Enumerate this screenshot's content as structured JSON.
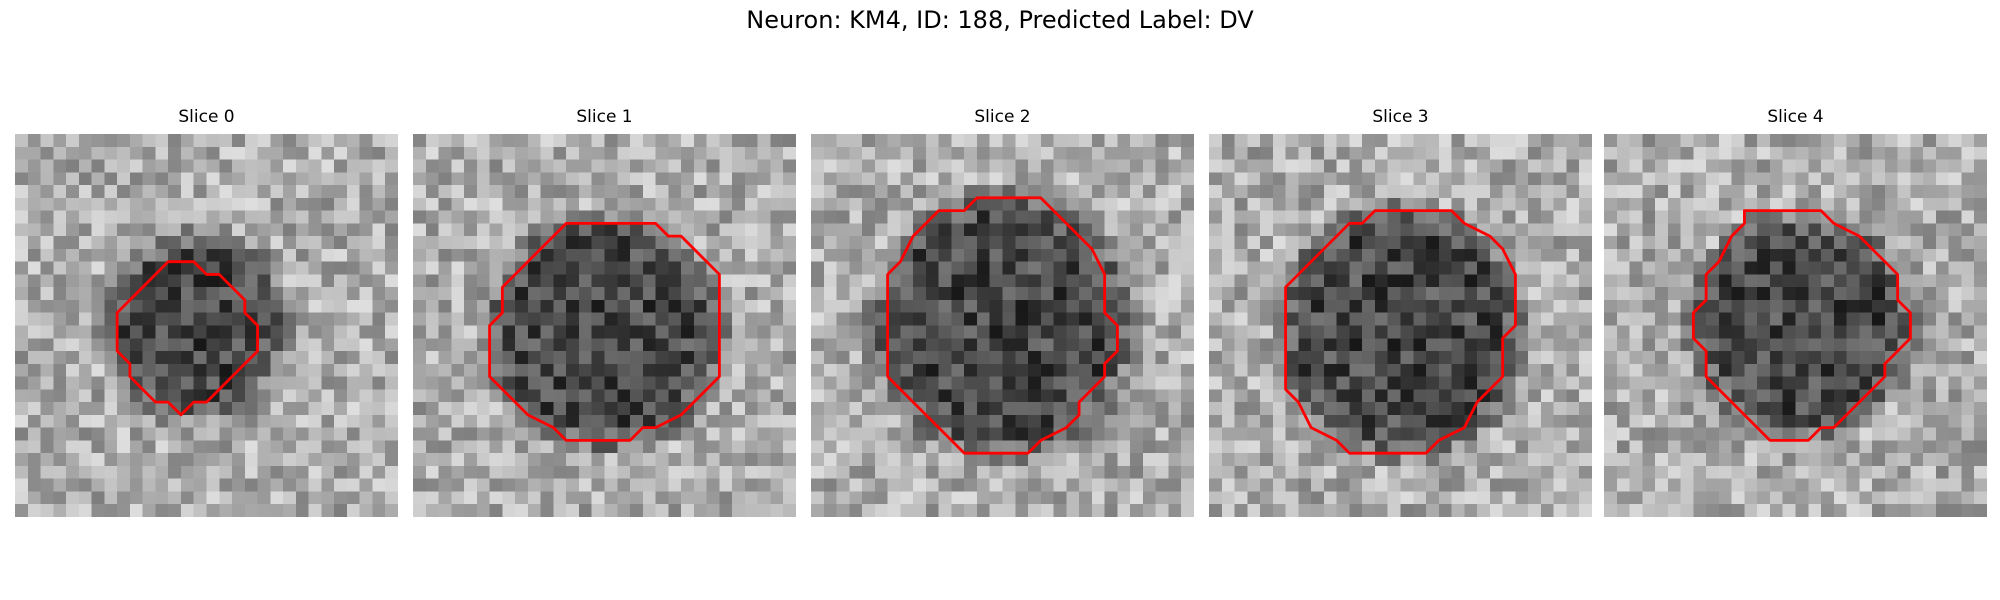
{
  "figure": {
    "title": "Neuron: KM4, ID: 188, Predicted Label: DV"
  },
  "slices": [
    {
      "title": "Slice 0",
      "contour": [
        [
          12,
          10
        ],
        [
          14,
          10
        ],
        [
          15,
          11
        ],
        [
          16,
          11
        ],
        [
          17,
          12
        ],
        [
          18,
          13
        ],
        [
          18,
          14
        ],
        [
          19,
          15
        ],
        [
          19,
          17
        ],
        [
          18,
          18
        ],
        [
          17,
          19
        ],
        [
          16,
          20
        ],
        [
          15,
          21
        ],
        [
          14,
          21
        ],
        [
          13,
          22
        ],
        [
          12,
          21
        ],
        [
          11,
          21
        ],
        [
          10,
          20
        ],
        [
          9,
          19
        ],
        [
          9,
          18
        ],
        [
          8,
          17
        ],
        [
          8,
          14
        ],
        [
          9,
          13
        ],
        [
          10,
          12
        ],
        [
          11,
          11
        ]
      ],
      "dark_center": [
        14,
        15
      ],
      "dark_radius": 6.5,
      "fill_fraction": 0.35
    },
    {
      "title": "Slice 1",
      "contour": [
        [
          12,
          7
        ],
        [
          19,
          7
        ],
        [
          20,
          8
        ],
        [
          21,
          8
        ],
        [
          22,
          9
        ],
        [
          23,
          10
        ],
        [
          24,
          11
        ],
        [
          24,
          19
        ],
        [
          23,
          20
        ],
        [
          22,
          21
        ],
        [
          21,
          22
        ],
        [
          19,
          23
        ],
        [
          18,
          23
        ],
        [
          17,
          24
        ],
        [
          12,
          24
        ],
        [
          11,
          23
        ],
        [
          9,
          22
        ],
        [
          8,
          21
        ],
        [
          6,
          19
        ],
        [
          6,
          15
        ],
        [
          7,
          14
        ],
        [
          7,
          12
        ],
        [
          8,
          11
        ],
        [
          9,
          10
        ],
        [
          10,
          9
        ],
        [
          11,
          8
        ]
      ],
      "dark_center": [
        15,
        15.5
      ],
      "dark_radius": 8.5,
      "fill_fraction": 0.25
    },
    {
      "title": "Slice 2",
      "contour": [
        [
          13,
          5
        ],
        [
          18,
          5
        ],
        [
          19,
          6
        ],
        [
          20,
          7
        ],
        [
          21,
          8
        ],
        [
          22,
          9
        ],
        [
          23,
          11
        ],
        [
          23,
          14
        ],
        [
          24,
          15
        ],
        [
          24,
          17
        ],
        [
          23,
          18
        ],
        [
          23,
          19
        ],
        [
          22,
          20
        ],
        [
          21,
          21
        ],
        [
          21,
          22
        ],
        [
          20,
          23
        ],
        [
          18,
          24
        ],
        [
          17,
          25
        ],
        [
          12,
          25
        ],
        [
          11,
          24
        ],
        [
          10,
          23
        ],
        [
          9,
          22
        ],
        [
          8,
          21
        ],
        [
          7,
          20
        ],
        [
          6,
          19
        ],
        [
          6,
          11
        ],
        [
          7,
          10
        ],
        [
          8,
          8
        ],
        [
          9,
          7
        ],
        [
          10,
          6
        ],
        [
          12,
          6
        ]
      ],
      "dark_center": [
        15,
        15
      ],
      "dark_radius": 9.5,
      "fill_fraction": 0.2
    },
    {
      "title": "Slice 3",
      "contour": [
        [
          13,
          6
        ],
        [
          19,
          6
        ],
        [
          20,
          7
        ],
        [
          22,
          8
        ],
        [
          23,
          9
        ],
        [
          24,
          11
        ],
        [
          24,
          15
        ],
        [
          23,
          16
        ],
        [
          23,
          19
        ],
        [
          22,
          20
        ],
        [
          21,
          21
        ],
        [
          20,
          23
        ],
        [
          18,
          24
        ],
        [
          17,
          25
        ],
        [
          11,
          25
        ],
        [
          10,
          24
        ],
        [
          8,
          23
        ],
        [
          7,
          21
        ],
        [
          6,
          20
        ],
        [
          6,
          12
        ],
        [
          7,
          11
        ],
        [
          8,
          10
        ],
        [
          9,
          9
        ],
        [
          10,
          8
        ],
        [
          11,
          7
        ],
        [
          12,
          7
        ]
      ],
      "dark_center": [
        15,
        15.5
      ],
      "dark_radius": 9,
      "fill_fraction": 0.22
    },
    {
      "title": "Slice 4",
      "contour": [
        [
          11,
          6
        ],
        [
          17,
          6
        ],
        [
          18,
          7
        ],
        [
          20,
          8
        ],
        [
          21,
          9
        ],
        [
          22,
          10
        ],
        [
          23,
          11
        ],
        [
          23,
          13
        ],
        [
          24,
          14
        ],
        [
          24,
          16
        ],
        [
          23,
          17
        ],
        [
          22,
          18
        ],
        [
          22,
          19
        ],
        [
          21,
          20
        ],
        [
          20,
          21
        ],
        [
          19,
          22
        ],
        [
          18,
          23
        ],
        [
          17,
          23
        ],
        [
          16,
          24
        ],
        [
          13,
          24
        ],
        [
          12,
          23
        ],
        [
          11,
          22
        ],
        [
          10,
          21
        ],
        [
          9,
          20
        ],
        [
          8,
          19
        ],
        [
          8,
          17
        ],
        [
          7,
          16
        ],
        [
          7,
          14
        ],
        [
          8,
          13
        ],
        [
          8,
          11
        ],
        [
          9,
          10
        ],
        [
          10,
          8
        ],
        [
          11,
          7
        ]
      ],
      "dark_center": [
        15.5,
        15
      ],
      "dark_radius": 8,
      "fill_fraction": 0.3
    }
  ],
  "colors": {
    "contour": "#ff0000",
    "colormap": "gray"
  }
}
